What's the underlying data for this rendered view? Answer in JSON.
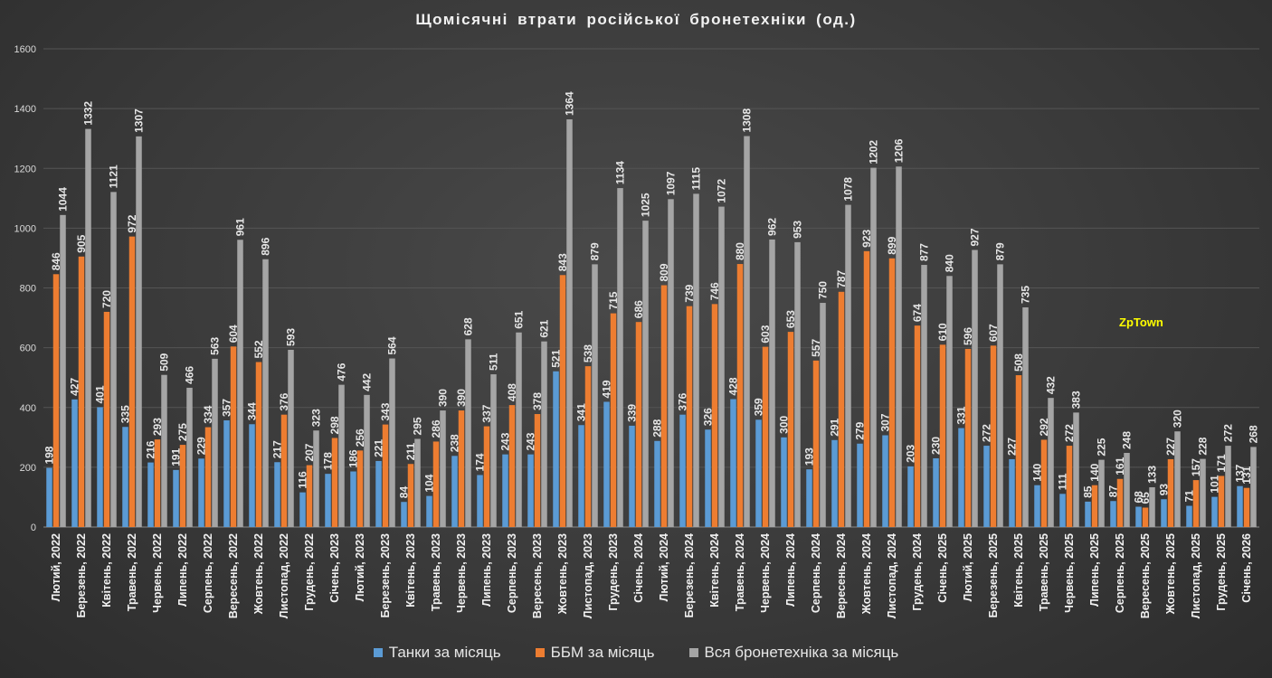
{
  "chart_data": {
    "type": "bar",
    "title": "Щомісячні втрати російської бронетехніки (од.)",
    "xlabel": "",
    "ylabel": "",
    "ylim": [
      0,
      1600
    ],
    "yticks": [
      0,
      200,
      400,
      600,
      800,
      1000,
      1200,
      1400,
      1600
    ],
    "grid": true,
    "legend_position": "bottom",
    "categories": [
      "Лютий, 2022",
      "Березень, 2022",
      "Квітень, 2022",
      "Травень, 2022",
      "Червень, 2022",
      "Липень, 2022",
      "Серпень, 2022",
      "Вересень, 2022",
      "Жовтень, 2022",
      "Листопад, 2022",
      "Грудень, 2022",
      "Січень, 2023",
      "Лютий, 2023",
      "Березень, 2023",
      "Квітень, 2023",
      "Травень, 2023",
      "Червень, 2023",
      "Липень, 2023",
      "Серпень, 2023",
      "Вересень, 2023",
      "Жовтень, 2023",
      "Листопад, 2023",
      "Грудень, 2023",
      "Січень, 2024",
      "Лютий, 2024",
      "Березень, 2024",
      "Квітень, 2024",
      "Травень, 2024",
      "Червень, 2024",
      "Липень, 2024",
      "Серпень, 2024",
      "Вересень, 2024",
      "Жовтень, 2024",
      "Листопад, 2024",
      "Грудень, 2024",
      "Січень, 2025",
      "Лютий, 2025",
      "Березень, 2025",
      "Квітень, 2025",
      "Травень, 2025",
      "Червень, 2025",
      "Липень, 2025",
      "Серпень, 2025",
      "Вересень, 2025",
      "Жовтень, 2025",
      "Листопад, 2025",
      "Грудень, 2025",
      "Січень, 2026"
    ],
    "series": [
      {
        "name": "Танки за місяць",
        "color": "#5b9bd5",
        "values": [
          198,
          427,
          401,
          335,
          216,
          191,
          229,
          357,
          344,
          217,
          116,
          178,
          186,
          221,
          84,
          104,
          238,
          174,
          243,
          243,
          521,
          341,
          419,
          339,
          288,
          376,
          326,
          428,
          359,
          300,
          193,
          291,
          279,
          307,
          203,
          230,
          331,
          272,
          227,
          140,
          111,
          85,
          87,
          68,
          93,
          71,
          101,
          137
        ]
      },
      {
        "name": "ББМ за місяць",
        "color": "#ed7d31",
        "values": [
          846,
          905,
          720,
          972,
          293,
          275,
          334,
          604,
          552,
          376,
          207,
          298,
          256,
          343,
          211,
          286,
          390,
          337,
          408,
          378,
          843,
          538,
          715,
          686,
          809,
          739,
          746,
          880,
          603,
          653,
          557,
          787,
          923,
          899,
          674,
          610,
          596,
          607,
          508,
          292,
          272,
          140,
          161,
          65,
          227,
          157,
          171,
          131
        ]
      },
      {
        "name": "Вся бронетехніка за місяць",
        "color": "#a5a5a5",
        "values": [
          1044,
          1332,
          1121,
          1307,
          509,
          466,
          563,
          961,
          896,
          593,
          323,
          476,
          442,
          564,
          295,
          390,
          628,
          511,
          651,
          621,
          1364,
          879,
          1134,
          1025,
          1097,
          1115,
          1072,
          1308,
          962,
          953,
          750,
          1078,
          1202,
          1206,
          877,
          840,
          927,
          879,
          735,
          432,
          383,
          225,
          248,
          133,
          320,
          228,
          272,
          268
        ]
      }
    ]
  },
  "watermark": "ZpTown"
}
